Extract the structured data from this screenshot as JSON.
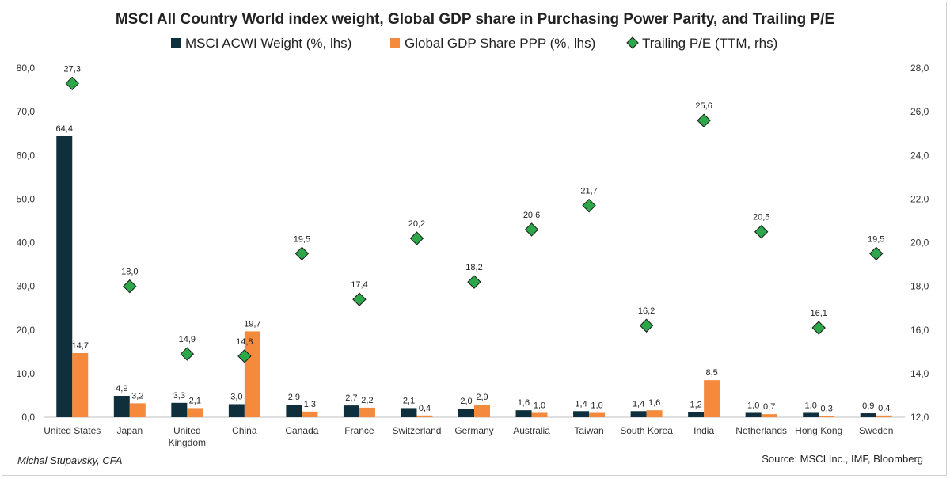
{
  "chart_data": {
    "type": "bar",
    "title": "MSCI All Country World index weight, Global GDP share in Purchasing Power Parity, and Trailing P/E",
    "categories": [
      "United States",
      "Japan",
      "United Kingdom",
      "China",
      "Canada",
      "France",
      "Switzerland",
      "Germany",
      "Australia",
      "Taiwan",
      "South Korea",
      "India",
      "Netherlands",
      "Hong Kong",
      "Sweden"
    ],
    "series": [
      {
        "name": "MSCI ACWI Weight (%, lhs)",
        "kind": "bar",
        "axis": "left",
        "color": "#0f2f3c",
        "values": [
          64.4,
          4.9,
          3.3,
          3.0,
          2.9,
          2.7,
          2.1,
          2.0,
          1.6,
          1.4,
          1.4,
          1.2,
          1.0,
          1.0,
          0.9
        ],
        "labels": [
          "64,4",
          "4,9",
          "3,3",
          "3,0",
          "2,9",
          "2,7",
          "2,1",
          "2,0",
          "1,6",
          "1,4",
          "1,4",
          "1,2",
          "1,0",
          "1,0",
          "0,9"
        ]
      },
      {
        "name": "Global GDP Share PPP (%, lhs)",
        "kind": "bar",
        "axis": "left",
        "color": "#f58a3c",
        "values": [
          14.7,
          3.2,
          2.1,
          19.7,
          1.3,
          2.2,
          0.4,
          2.9,
          1.0,
          1.0,
          1.6,
          8.5,
          0.7,
          0.3,
          0.4
        ],
        "labels": [
          "14,7",
          "3,2",
          "2,1",
          "19,7",
          "1,3",
          "2,2",
          "0,4",
          "2,9",
          "1,0",
          "1,0",
          "1,6",
          "8,5",
          "0,7",
          "0,3",
          "0,4"
        ]
      },
      {
        "name": "Trailing P/E (TTM, rhs)",
        "kind": "marker",
        "axis": "right",
        "color": "#2ca84a",
        "values": [
          27.3,
          18.0,
          14.9,
          14.8,
          19.5,
          17.4,
          20.2,
          18.2,
          20.6,
          21.7,
          16.2,
          25.6,
          20.5,
          16.1,
          19.5
        ],
        "labels": [
          "27,3",
          "18,0",
          "14,9",
          "14,8",
          "19,5",
          "17,4",
          "20,2",
          "18,2",
          "20,6",
          "21,7",
          "16,2",
          "25,6",
          "20,5",
          "16,1",
          "19,5"
        ]
      }
    ],
    "y_left": {
      "min": 0,
      "max": 80,
      "ticks": [
        "0,0",
        "10,0",
        "20,0",
        "30,0",
        "40,0",
        "50,0",
        "60,0",
        "70,0",
        "80,0"
      ]
    },
    "y_right": {
      "min": 12,
      "max": 28,
      "ticks": [
        "12,0",
        "14,0",
        "16,0",
        "18,0",
        "20,0",
        "22,0",
        "24,0",
        "26,0",
        "28,0"
      ]
    },
    "legend_position": "top",
    "grid": false
  },
  "footer": {
    "author": "Michal Stupavsky, CFA",
    "source": "Source: MSCI Inc., IMF, Bloomberg"
  }
}
